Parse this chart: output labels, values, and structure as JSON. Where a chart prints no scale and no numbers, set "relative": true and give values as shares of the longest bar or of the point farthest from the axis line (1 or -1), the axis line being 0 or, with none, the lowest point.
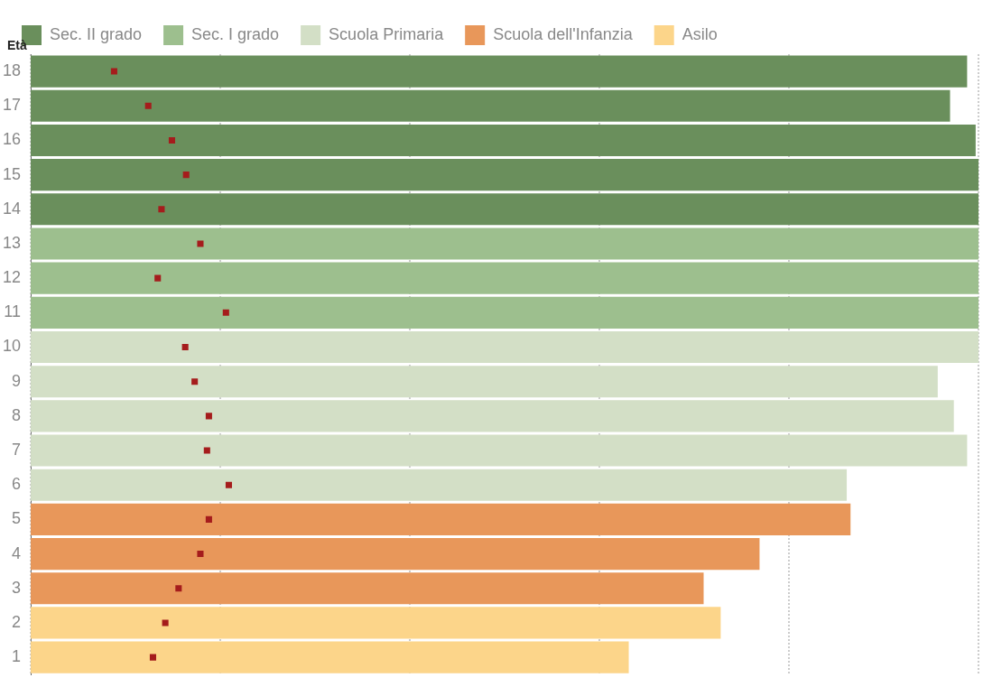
{
  "chart_data": {
    "type": "bar",
    "orientation": "horizontal",
    "relative": true,
    "ylabel": "Età",
    "categories": [
      "18",
      "17",
      "16",
      "15",
      "14",
      "13",
      "12",
      "11",
      "10",
      "9",
      "8",
      "7",
      "6",
      "5",
      "4",
      "3",
      "2",
      "1"
    ],
    "series": [
      {
        "name": "Sec. II grado",
        "color": "#6a8f5c",
        "values": [
          0.988,
          0.97,
          0.997,
          1,
          1,
          null,
          null,
          null,
          null,
          null,
          null,
          null,
          null,
          null,
          null,
          null,
          null,
          null
        ]
      },
      {
        "name": "Sec. I grado",
        "color": "#9dbf8e",
        "values": [
          null,
          null,
          null,
          null,
          null,
          1,
          1,
          1,
          null,
          null,
          null,
          null,
          null,
          null,
          null,
          null,
          null,
          null
        ]
      },
      {
        "name": "Scuola Primaria",
        "color": "#d3dfc6",
        "values": [
          null,
          null,
          null,
          null,
          null,
          null,
          null,
          null,
          1,
          0.957,
          0.974,
          0.988,
          0.861,
          null,
          null,
          null,
          null,
          null
        ]
      },
      {
        "name": "Scuola dell'Infanzia",
        "color": "#e8975a",
        "values": [
          null,
          null,
          null,
          null,
          null,
          null,
          null,
          null,
          null,
          null,
          null,
          null,
          null,
          0.865,
          0.769,
          0.71,
          null,
          null
        ]
      },
      {
        "name": "Asilo",
        "color": "#fcd58a",
        "values": [
          null,
          null,
          null,
          null,
          null,
          null,
          null,
          null,
          null,
          null,
          null,
          null,
          null,
          null,
          null,
          null,
          0.728,
          0.631
        ]
      },
      {
        "type": "scatter",
        "color": "#a51c1c",
        "marker": "square",
        "values": [
          0.088,
          0.124,
          0.149,
          0.164,
          0.138,
          0.179,
          0.134,
          0.206,
          0.163,
          0.173,
          0.188,
          0.186,
          0.209,
          0.188,
          0.179,
          0.156,
          0.142,
          0.129
        ]
      }
    ],
    "grid": "x",
    "legend": "top"
  }
}
